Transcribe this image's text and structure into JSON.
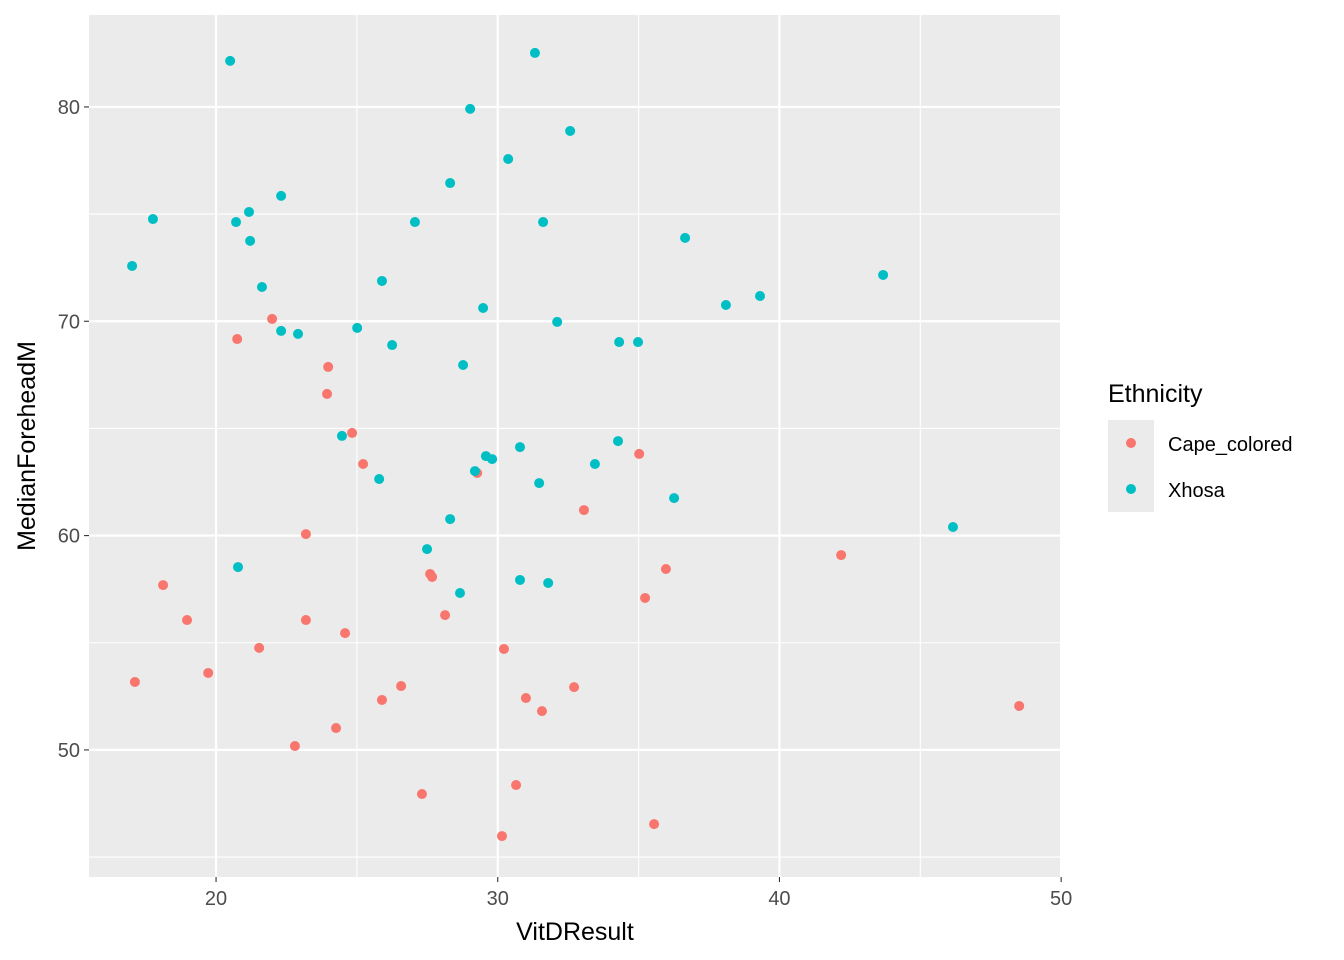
{
  "chart_data": {
    "type": "scatter",
    "title": "",
    "xlabel": "VitDResult",
    "ylabel": "MedianForeheadM",
    "xlim": [
      15.49,
      50.03
    ],
    "ylim": [
      44.07,
      84.29
    ],
    "xticks": [
      20,
      30,
      40,
      50
    ],
    "yticks": [
      50,
      60,
      70,
      80
    ],
    "grid": true,
    "legend": {
      "title": "Ethnicity",
      "placement": "right"
    },
    "series": [
      {
        "name": "Cape_colored",
        "color": "#F8766D",
        "points": [
          [
            21.99,
            70.11
          ],
          [
            20.75,
            69.17
          ],
          [
            23.98,
            67.87
          ],
          [
            23.94,
            66.61
          ],
          [
            24.83,
            64.79
          ],
          [
            25.22,
            63.34
          ],
          [
            29.27,
            62.92
          ],
          [
            35.02,
            63.81
          ],
          [
            33.06,
            61.19
          ],
          [
            23.19,
            60.07
          ],
          [
            42.19,
            59.09
          ],
          [
            35.97,
            58.44
          ],
          [
            27.6,
            58.21
          ],
          [
            27.67,
            58.07
          ],
          [
            18.12,
            57.69
          ],
          [
            35.23,
            57.09
          ],
          [
            28.13,
            56.29
          ],
          [
            18.97,
            56.06
          ],
          [
            23.19,
            56.06
          ],
          [
            24.58,
            55.45
          ],
          [
            21.53,
            54.76
          ],
          [
            30.22,
            54.71
          ],
          [
            19.72,
            53.59
          ],
          [
            17.12,
            53.17
          ],
          [
            26.57,
            52.98
          ],
          [
            32.71,
            52.93
          ],
          [
            25.89,
            52.33
          ],
          [
            31.0,
            52.42
          ],
          [
            31.57,
            51.81
          ],
          [
            48.51,
            52.05
          ],
          [
            24.26,
            51.02
          ],
          [
            22.8,
            50.18
          ],
          [
            27.31,
            47.94
          ],
          [
            30.65,
            48.36
          ],
          [
            30.15,
            45.98
          ],
          [
            35.55,
            46.54
          ]
        ]
      },
      {
        "name": "Xhosa",
        "color": "#00BFC4",
        "points": [
          [
            31.32,
            82.52
          ],
          [
            20.5,
            82.15
          ],
          [
            29.02,
            79.91
          ],
          [
            32.57,
            78.88
          ],
          [
            30.37,
            77.57
          ],
          [
            28.31,
            76.45
          ],
          [
            22.31,
            75.85
          ],
          [
            17.76,
            74.77
          ],
          [
            20.71,
            74.63
          ],
          [
            21.17,
            75.1
          ],
          [
            27.06,
            74.63
          ],
          [
            31.61,
            74.63
          ],
          [
            21.21,
            73.75
          ],
          [
            36.65,
            73.89
          ],
          [
            17.02,
            72.58
          ],
          [
            43.68,
            72.16
          ],
          [
            21.63,
            71.6
          ],
          [
            25.89,
            71.88
          ],
          [
            39.31,
            71.18
          ],
          [
            38.1,
            70.76
          ],
          [
            29.48,
            70.62
          ],
          [
            32.11,
            69.97
          ],
          [
            22.31,
            69.55
          ],
          [
            22.91,
            69.41
          ],
          [
            25.01,
            69.69
          ],
          [
            26.25,
            68.89
          ],
          [
            34.31,
            69.03
          ],
          [
            34.98,
            69.03
          ],
          [
            28.77,
            67.96
          ],
          [
            24.47,
            64.65
          ],
          [
            30.79,
            64.13
          ],
          [
            34.27,
            64.41
          ],
          [
            29.58,
            63.71
          ],
          [
            29.8,
            63.57
          ],
          [
            29.19,
            63.01
          ],
          [
            33.45,
            63.34
          ],
          [
            25.79,
            62.64
          ],
          [
            31.47,
            62.45
          ],
          [
            36.26,
            61.75
          ],
          [
            46.16,
            60.4
          ],
          [
            28.31,
            60.77
          ],
          [
            27.49,
            59.37
          ],
          [
            20.78,
            58.53
          ],
          [
            30.79,
            57.93
          ],
          [
            31.79,
            57.79
          ],
          [
            28.66,
            57.32
          ]
        ]
      }
    ]
  }
}
